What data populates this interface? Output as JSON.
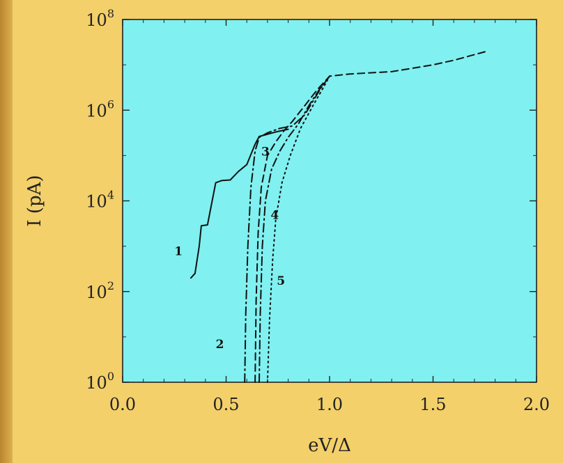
{
  "chart_data": {
    "type": "line",
    "xlabel": "eV/Δ",
    "ylabel": "I (pA)",
    "xlim": [
      0.0,
      2.0
    ],
    "ylim_log10": [
      0,
      8
    ],
    "yscale": "log",
    "x_ticks": [
      "0.0",
      "0.5",
      "1.0",
      "1.5",
      "2.0"
    ],
    "y_ticks": [
      {
        "base": "10",
        "exp": "0"
      },
      {
        "base": "10",
        "exp": "2"
      },
      {
        "base": "10",
        "exp": "4"
      },
      {
        "base": "10",
        "exp": "6"
      },
      {
        "base": "10",
        "exp": "8"
      }
    ],
    "colors": {
      "plot_bg": "#80f0f0",
      "line": "#111111",
      "frame_bg": "#f3d06a"
    },
    "series": [
      {
        "name": "1",
        "dash": "solid",
        "points": [
          [
            0.33,
            2.3
          ],
          [
            0.35,
            2.4
          ],
          [
            0.37,
            3.0
          ],
          [
            0.38,
            3.45
          ],
          [
            0.41,
            3.47
          ],
          [
            0.42,
            3.7
          ],
          [
            0.45,
            4.4
          ],
          [
            0.48,
            4.45
          ],
          [
            0.52,
            4.46
          ],
          [
            0.56,
            4.65
          ],
          [
            0.6,
            4.8
          ],
          [
            0.64,
            5.25
          ],
          [
            0.66,
            5.42
          ],
          [
            0.7,
            5.47
          ],
          [
            0.74,
            5.52
          ],
          [
            0.8,
            5.58
          ]
        ]
      },
      {
        "name": "2",
        "dash": "dashdot",
        "points": [
          [
            0.59,
            0.0
          ],
          [
            0.595,
            1.5
          ],
          [
            0.605,
            3.0
          ],
          [
            0.62,
            4.3
          ],
          [
            0.64,
            5.1
          ],
          [
            0.66,
            5.4
          ],
          [
            0.7,
            5.5
          ],
          [
            0.76,
            5.6
          ],
          [
            0.82,
            5.65
          ],
          [
            0.88,
            5.9
          ],
          [
            0.92,
            6.2
          ],
          [
            0.96,
            6.5
          ],
          [
            1.0,
            6.75
          ]
        ]
      },
      {
        "name": "3",
        "dash": "dash",
        "points": [
          [
            0.64,
            0.0
          ],
          [
            0.645,
            1.8
          ],
          [
            0.655,
            3.3
          ],
          [
            0.67,
            4.3
          ],
          [
            0.7,
            5.0
          ],
          [
            0.74,
            5.3
          ],
          [
            0.78,
            5.55
          ],
          [
            0.82,
            5.75
          ],
          [
            0.88,
            6.1
          ],
          [
            0.94,
            6.45
          ],
          [
            1.0,
            6.75
          ],
          [
            1.1,
            6.8
          ],
          [
            1.3,
            6.85
          ],
          [
            1.5,
            7.0
          ],
          [
            1.6,
            7.1
          ],
          [
            1.76,
            7.3
          ]
        ]
      },
      {
        "name": "4",
        "dash": "dashdot",
        "points": [
          [
            0.66,
            0.0
          ],
          [
            0.665,
            1.5
          ],
          [
            0.675,
            3.0
          ],
          [
            0.69,
            4.0
          ],
          [
            0.72,
            4.7
          ],
          [
            0.76,
            5.1
          ],
          [
            0.8,
            5.4
          ],
          [
            0.85,
            5.7
          ],
          [
            0.9,
            6.1
          ],
          [
            0.95,
            6.45
          ],
          [
            1.0,
            6.75
          ]
        ]
      },
      {
        "name": "5",
        "dash": "dot",
        "points": [
          [
            0.7,
            0.0
          ],
          [
            0.71,
            1.4
          ],
          [
            0.725,
            2.7
          ],
          [
            0.74,
            3.6
          ],
          [
            0.77,
            4.4
          ],
          [
            0.81,
            5.0
          ],
          [
            0.86,
            5.6
          ],
          [
            0.92,
            6.1
          ],
          [
            0.97,
            6.5
          ],
          [
            1.0,
            6.75
          ]
        ]
      }
    ],
    "annotations": [
      {
        "text": "1",
        "x": 0.27,
        "y": 2.8
      },
      {
        "text": "2",
        "x": 0.47,
        "y": 0.75
      },
      {
        "text": "3",
        "x": 0.69,
        "y": 5.0
      },
      {
        "text": "4",
        "x": 0.735,
        "y": 3.6
      },
      {
        "text": "5",
        "x": 0.765,
        "y": 2.15
      }
    ]
  }
}
